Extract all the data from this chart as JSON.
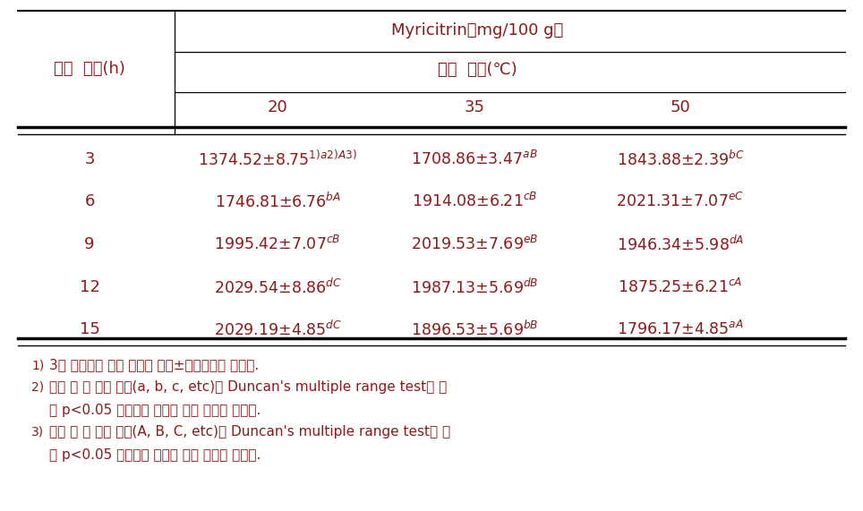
{
  "header_top": "Myricitrin（mg/100 g）",
  "header_sub": "추출 온도(℃)",
  "row_header_label": "추출 시간(h)",
  "temperatures": [
    "20",
    "35",
    "50"
  ],
  "times": [
    "3",
    "6",
    "9",
    "12",
    "15"
  ],
  "cell_data": [
    [
      "1374.52±8.75$^{1)a2)A3)}$",
      "1708.86±3.47$^{aB}$",
      "1843.88±2.39$^{bC}$"
    ],
    [
      "1746.81±6.76$^{bA}$",
      "1914.08±6.21$^{cB}$",
      "2021.31±7.07$^{eC}$"
    ],
    [
      "1995.42±7.07$^{cB}$",
      "2019.53±7.69$^{eB}$",
      "1946.34±5.98$^{dA}$"
    ],
    [
      "2029.54±8.86$^{dC}$",
      "1987.13±5.69$^{dB}$",
      "1875.25±6.21$^{cA}$"
    ],
    [
      "2029.19±4.85$^{dC}$",
      "1896.53±5.69$^{bB}$",
      "1796.17±4.85$^{aA}$"
    ]
  ],
  "fn1_num": "1)",
  "fn1_text": " 3회 반복하여 얻은 결과를 평균±표준편차로 나타냄.",
  "fn2_num": "2)",
  "fn2_line1": " 같은 열 내 다른 문자(a, b, c, etc)는 Duncan's multiple range test에 의",
  "fn2_line2": "해 p<0.05 수준에서 유의성 있는 차이를 나타냄.",
  "fn3_num": "3)",
  "fn3_line1": " 같은 행 내 다른 문자(A, B, C, etc)는 Duncan's multiple range test에 의",
  "fn3_line2": "해 p<0.05 수준에서 유의성 있는 차이를 나타냄.",
  "text_color": "#8B1A1A",
  "line_color": "#000000",
  "bg_color": "#FFFFFF"
}
